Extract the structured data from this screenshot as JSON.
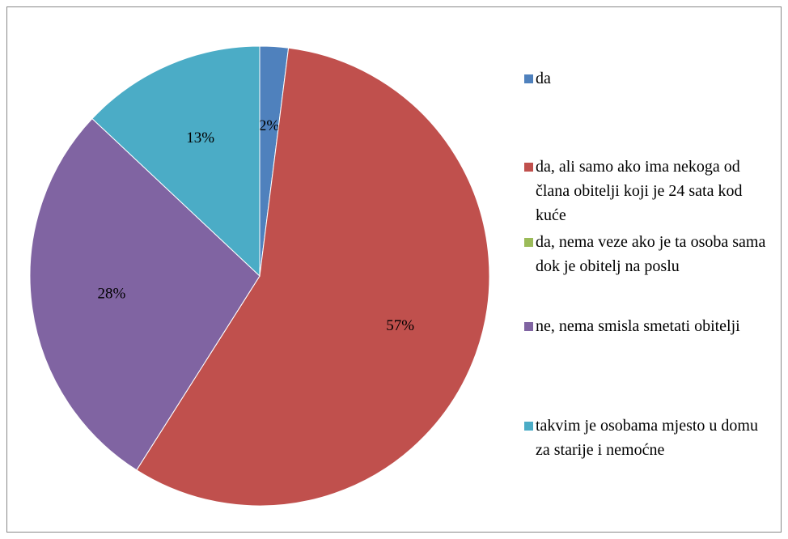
{
  "chart_data": {
    "type": "pie",
    "categories": [
      "da",
      "da, ali samo ako ima nekoga od člana obitelji koji je 24 sata kod kuće",
      "da, nema veze ako je ta osoba sama dok je obitelj na poslu",
      "ne, nema smisla smetati obitelji",
      "takvim je osobama mjesto u domu za starije i nemoćne"
    ],
    "values": [
      2,
      57,
      0,
      28,
      13
    ],
    "value_labels": [
      "2%",
      "57%",
      null,
      "28%",
      "13%"
    ],
    "colors": [
      "#4f81bd",
      "#c0504d",
      "#9bbb59",
      "#8064a2",
      "#4bacc6"
    ],
    "legend": "right"
  }
}
